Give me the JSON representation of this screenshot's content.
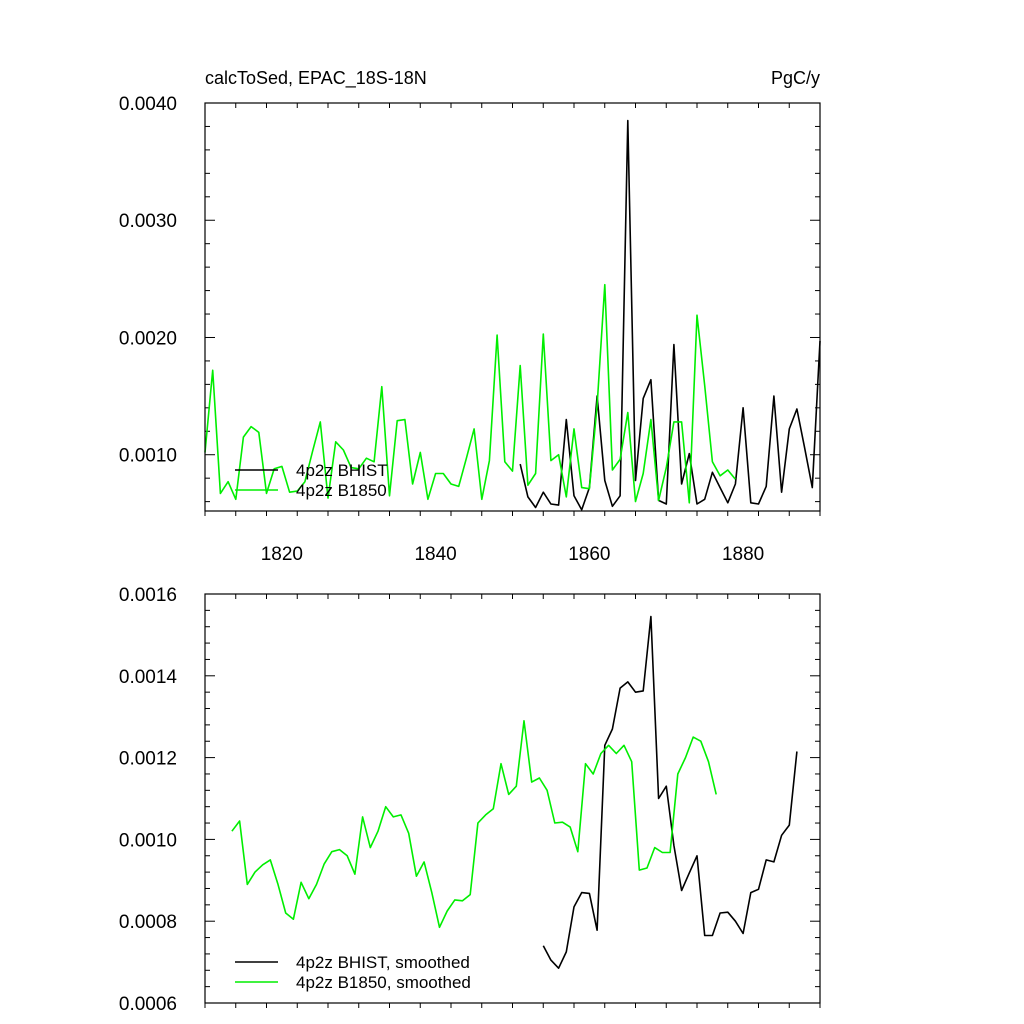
{
  "chart_data": [
    {
      "type": "line",
      "title": "calcToSed, EPAC_18S-18N",
      "units": "PgC/y",
      "xlim": [
        1810,
        1890
      ],
      "ylim": [
        0.00052,
        0.004
      ],
      "x_ticks": [
        1820,
        1840,
        1860,
        1880
      ],
      "x_tick_labels": [
        "1820",
        "1840",
        "1860",
        "1880"
      ],
      "y_ticks": [
        0.001,
        0.002,
        0.003,
        0.004
      ],
      "y_tick_labels": [
        "0.0010",
        "0.0020",
        "0.0030",
        "0.0040"
      ],
      "grid": false,
      "legend_position": "bottom-left",
      "series": [
        {
          "name": "4p2z BHIST",
          "color": "#000000",
          "start_year": 1851,
          "values": [
            0.00092,
            0.00064,
            0.00055,
            0.00068,
            0.00058,
            0.00057,
            0.0013,
            0.00065,
            0.00053,
            0.00072,
            0.0015,
            0.00078,
            0.00056,
            0.00065,
            0.00385,
            0.00078,
            0.00148,
            0.00164,
            0.00061,
            0.00058,
            0.00194,
            0.00075,
            0.00101,
            0.00058,
            0.00062,
            0.00085,
            0.00072,
            0.00059,
            0.00075,
            0.0014,
            0.00059,
            0.00058,
            0.00073,
            0.0015,
            0.00068,
            0.00122,
            0.00139,
            0.00106,
            0.00072,
            0.00197
          ]
        },
        {
          "name": "4p2z B1850",
          "color": "#00ee00",
          "start_year": 1810,
          "values": [
            0.00102,
            0.00172,
            0.00067,
            0.00077,
            0.00062,
            0.00115,
            0.00124,
            0.00119,
            0.00067,
            0.00088,
            0.0009,
            0.00068,
            0.00069,
            0.00077,
            0.00103,
            0.00128,
            0.00063,
            0.00111,
            0.00104,
            0.00089,
            0.00088,
            0.00097,
            0.00094,
            0.00158,
            0.00065,
            0.00129,
            0.0013,
            0.00075,
            0.00102,
            0.00062,
            0.00084,
            0.00084,
            0.00075,
            0.00073,
            0.00097,
            0.00122,
            0.00062,
            0.00095,
            0.00202,
            0.00094,
            0.00086,
            0.00176,
            0.00074,
            0.00084,
            0.00203,
            0.00095,
            0.001,
            0.00064,
            0.00122,
            0.00072,
            0.00071,
            0.00142,
            0.00245,
            0.00087,
            0.00096,
            0.00136,
            0.0006,
            0.00084,
            0.0013,
            0.00061,
            0.00089,
            0.00128,
            0.00128,
            0.00059,
            0.00219,
            0.00159,
            0.00094,
            0.00082,
            0.00087,
            0.00079
          ]
        }
      ]
    },
    {
      "type": "line",
      "title": "",
      "xlim": [
        1810,
        1890
      ],
      "ylim": [
        0.0006,
        0.0016
      ],
      "x_ticks": [
        1820,
        1840,
        1860,
        1880
      ],
      "y_ticks": [
        0.0006,
        0.0008,
        0.001,
        0.0012,
        0.0014,
        0.0016
      ],
      "y_tick_labels": [
        "0.0006",
        "0.0008",
        "0.0010",
        "0.0012",
        "0.0014",
        "0.0016"
      ],
      "grid": false,
      "legend_position": "bottom-left",
      "series": [
        {
          "name": "4p2z BHIST, smoothed",
          "color": "#000000",
          "start_year": 1854,
          "values": [
            0.00074,
            0.000705,
            0.000685,
            0.000725,
            0.000835,
            0.00087,
            0.000868,
            0.000778,
            0.00123,
            0.00127,
            0.00137,
            0.001385,
            0.00136,
            0.001363,
            0.001545,
            0.0011,
            0.00113,
            0.000985,
            0.000875,
            0.000918,
            0.00096,
            0.000765,
            0.000765,
            0.00082,
            0.000822,
            0.0008,
            0.00077,
            0.00087,
            0.000878,
            0.00095,
            0.000945,
            0.00101,
            0.001035,
            0.001215
          ]
        },
        {
          "name": "4p2z B1850, smoothed",
          "color": "#00ee00",
          "start_year": 1813.5,
          "values": [
            0.00102,
            0.001045,
            0.00089,
            0.00092,
            0.000938,
            0.00095,
            0.00089,
            0.00082,
            0.000805,
            0.000895,
            0.000855,
            0.00089,
            0.00094,
            0.00097,
            0.000975,
            0.00096,
            0.000915,
            0.001055,
            0.00098,
            0.00102,
            0.00108,
            0.001055,
            0.00106,
            0.001015,
            0.00091,
            0.000945,
            0.00087,
            0.000785,
            0.000825,
            0.000852,
            0.00085,
            0.000865,
            0.00104,
            0.00106,
            0.001075,
            0.001185,
            0.00111,
            0.00113,
            0.00129,
            0.00114,
            0.00115,
            0.00112,
            0.00104,
            0.001042,
            0.00103,
            0.00097,
            0.001185,
            0.00116,
            0.00121,
            0.00123,
            0.00121,
            0.00123,
            0.00119,
            0.000925,
            0.00093,
            0.00098,
            0.000968,
            0.000968,
            0.00116,
            0.0012,
            0.00125,
            0.00124,
            0.00119,
            0.00111
          ]
        }
      ]
    }
  ]
}
